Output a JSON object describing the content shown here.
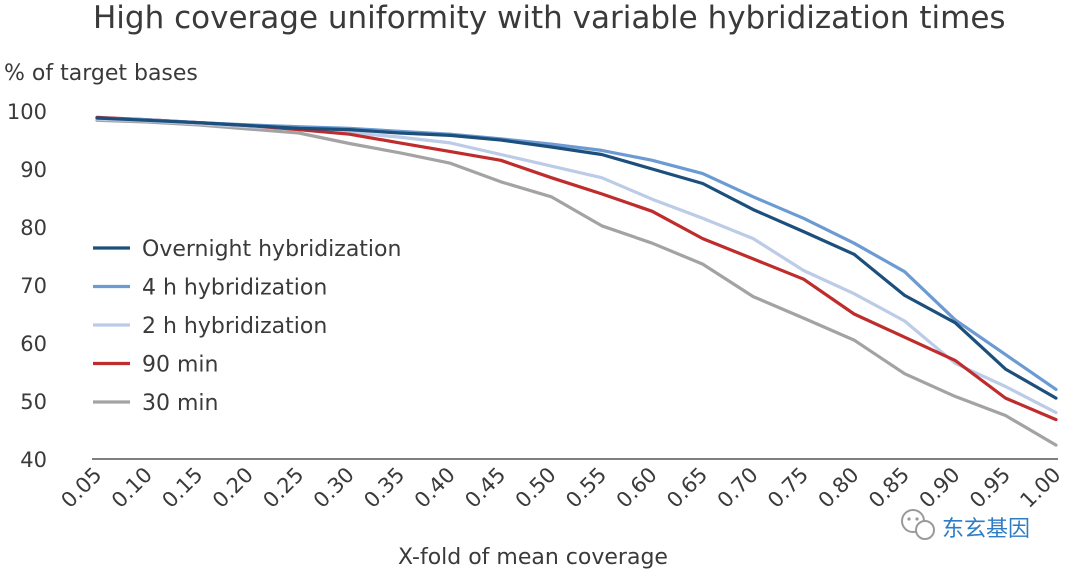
{
  "chart_data": {
    "type": "line",
    "title": "High coverage uniformity with variable hybridization times",
    "ylabel": "% of target bases",
    "xlabel": "X-fold of mean coverage",
    "ylim": [
      40,
      100
    ],
    "yticks": [
      "40",
      "50",
      "60",
      "70",
      "80",
      "90",
      "100"
    ],
    "categories": [
      "0.05",
      "0.10",
      "0.15",
      "0.20",
      "0.25",
      "0.30",
      "0.35",
      "0.40",
      "0.45",
      "0.50",
      "0.55",
      "0.60",
      "0.65",
      "0.70",
      "0.75",
      "0.80",
      "0.85",
      "0.90",
      "0.95",
      "1.00"
    ],
    "series": [
      {
        "name": "Overnight hybridization",
        "color": "#1c4f7c",
        "values": [
          98.8,
          98.4,
          98.0,
          97.5,
          97.0,
          96.8,
          96.2,
          95.8,
          95.0,
          93.8,
          92.5,
          90.0,
          87.5,
          83.0,
          79.2,
          75.3,
          68.2,
          63.5,
          55.5,
          50.5
        ]
      },
      {
        "name": "4 h hybridization",
        "color": "#6b9bd2",
        "values": [
          98.8,
          98.5,
          98.0,
          97.6,
          97.3,
          97.0,
          96.5,
          96.0,
          95.2,
          94.3,
          93.2,
          91.5,
          89.2,
          85.2,
          81.5,
          77.2,
          72.3,
          64.0,
          58.0,
          52.0
        ]
      },
      {
        "name": "2 h hybridization",
        "color": "#bccbe6",
        "values": [
          98.6,
          98.3,
          97.8,
          97.3,
          96.9,
          96.3,
          95.5,
          94.5,
          92.5,
          90.5,
          88.5,
          84.8,
          81.5,
          78.0,
          72.5,
          68.5,
          63.8,
          56.5,
          52.5,
          48.0
        ]
      },
      {
        "name": "90 min",
        "color": "#bf2c2c",
        "values": [
          98.9,
          98.5,
          98.0,
          97.5,
          96.8,
          96.0,
          94.5,
          93.0,
          91.5,
          88.5,
          85.7,
          82.7,
          78.0,
          74.5,
          71.0,
          65.0,
          61.0,
          57.0,
          50.5,
          46.8
        ]
      },
      {
        "name": "30 min",
        "color": "#a3a3a3",
        "values": [
          98.4,
          98.1,
          97.6,
          96.9,
          96.2,
          94.4,
          92.8,
          91.0,
          87.8,
          85.2,
          80.2,
          77.2,
          73.6,
          68.0,
          64.3,
          60.5,
          54.7,
          50.8,
          47.5,
          42.4
        ]
      }
    ],
    "legend_position": "left-center",
    "grid": false
  },
  "watermark": {
    "text": "东玄基因"
  }
}
